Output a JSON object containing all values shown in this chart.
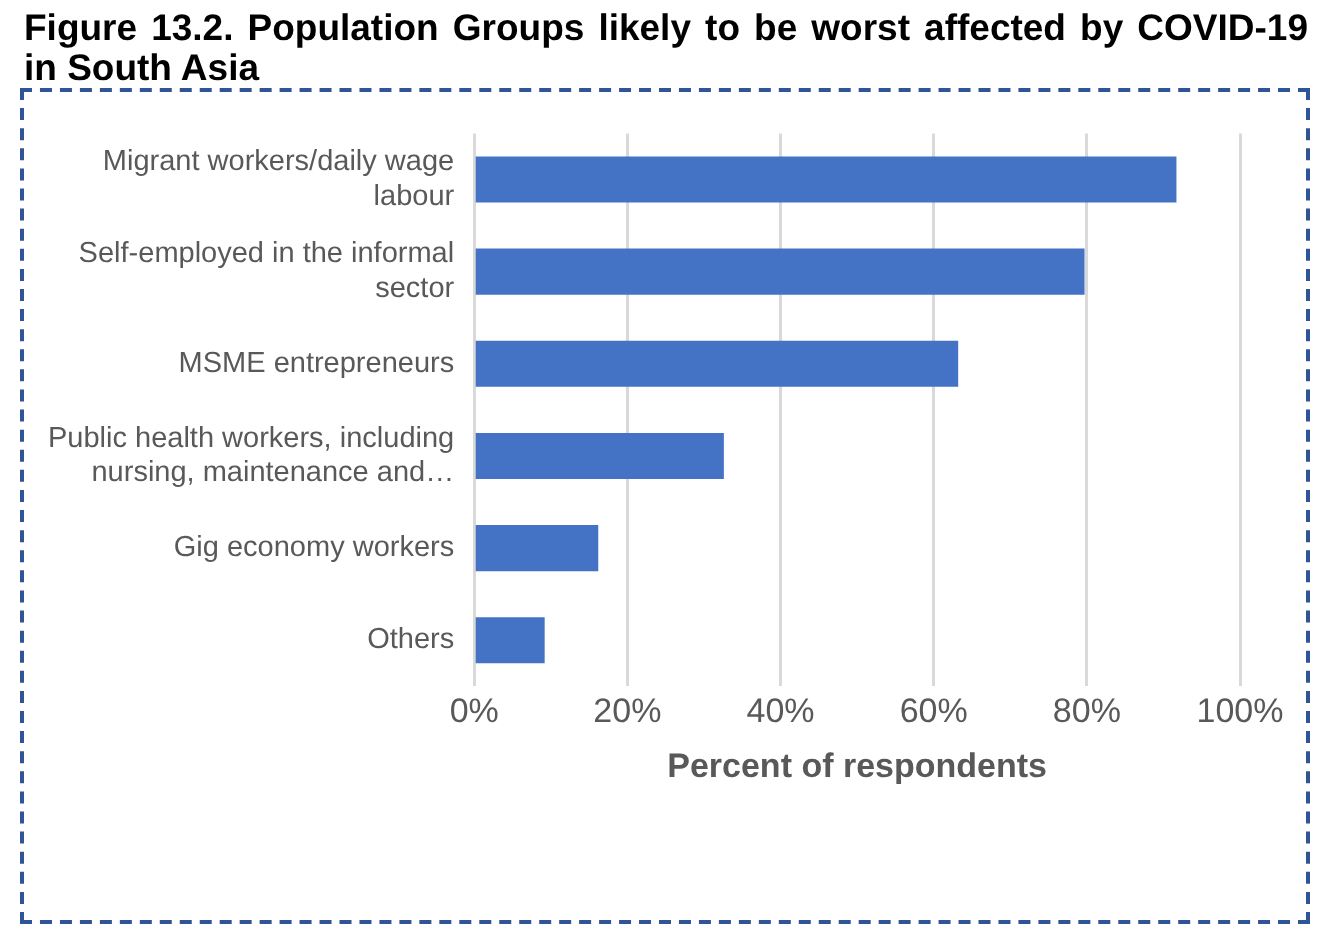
{
  "chart_data": {
    "type": "bar",
    "orientation": "horizontal",
    "title": "Figure 13.2. Population Groups likely to be worst affected by COVID-19 in South Asia",
    "xlabel": "Percent of respondents",
    "categories": [
      "Migrant workers/daily wage labour",
      "Self-employed in the informal sector",
      "MSME entrepreneurs",
      "Public health workers, including nursing, maintenance and…",
      "Gig economy workers",
      "Others"
    ],
    "values": [
      91.7,
      79.7,
      63.2,
      32.6,
      16.2,
      9.2
    ],
    "color": "#4472c4",
    "xlim": [
      0,
      100
    ],
    "xticks": [
      {
        "value": 0,
        "label": "0%"
      },
      {
        "value": 20,
        "label": "20%"
      },
      {
        "value": 40,
        "label": "40%"
      },
      {
        "value": 60,
        "label": "60%"
      },
      {
        "value": 80,
        "label": "80%"
      },
      {
        "value": 100,
        "label": "100%"
      }
    ],
    "grid": "x",
    "legend": false
  }
}
